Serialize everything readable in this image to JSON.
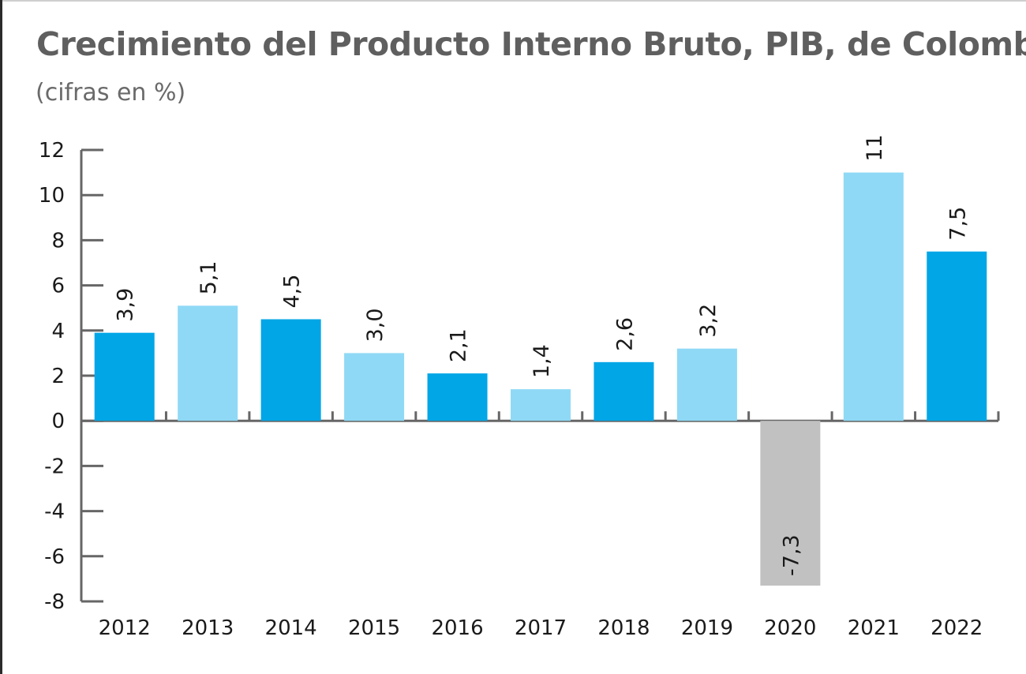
{
  "header": {
    "title": "Crecimiento del Producto Interno Bruto, PIB, de Colombia",
    "subtitle": "(cifras en %)"
  },
  "chart_data": {
    "type": "bar",
    "title": "Crecimiento del Producto Interno Bruto, PIB, de Colombia",
    "subtitle": "(cifras en %)",
    "xlabel": "",
    "ylabel": "",
    "ylim": [
      -8,
      12
    ],
    "yticks": [
      "-8",
      "-6",
      "-4",
      "-2",
      "0",
      "2",
      "4",
      "6",
      "8",
      "10",
      "12"
    ],
    "ytick_values": [
      -8,
      -6,
      -4,
      -2,
      0,
      2,
      4,
      6,
      8,
      10,
      12
    ],
    "categories": [
      "2012",
      "2013",
      "2014",
      "2015",
      "2016",
      "2017",
      "2018",
      "2019",
      "2020",
      "2021",
      "2022"
    ],
    "values": [
      3.9,
      5.1,
      4.5,
      3.0,
      2.1,
      1.4,
      2.6,
      3.2,
      -7.3,
      11,
      7.5
    ],
    "data_labels": [
      "3,9",
      "5,1",
      "4,5",
      "3,0",
      "2,1",
      "1,4",
      "2,6",
      "3,2",
      "-7,3",
      "11",
      "7,5"
    ],
    "colors": [
      "#00a6e6",
      "#8fd9f6",
      "#00a6e6",
      "#8fd9f6",
      "#00a6e6",
      "#8fd9f6",
      "#00a6e6",
      "#8fd9f6",
      "#c1c1c1",
      "#8fd9f6",
      "#00a6e6"
    ],
    "axis_color": "#666666",
    "grid": false,
    "legend": "none"
  }
}
